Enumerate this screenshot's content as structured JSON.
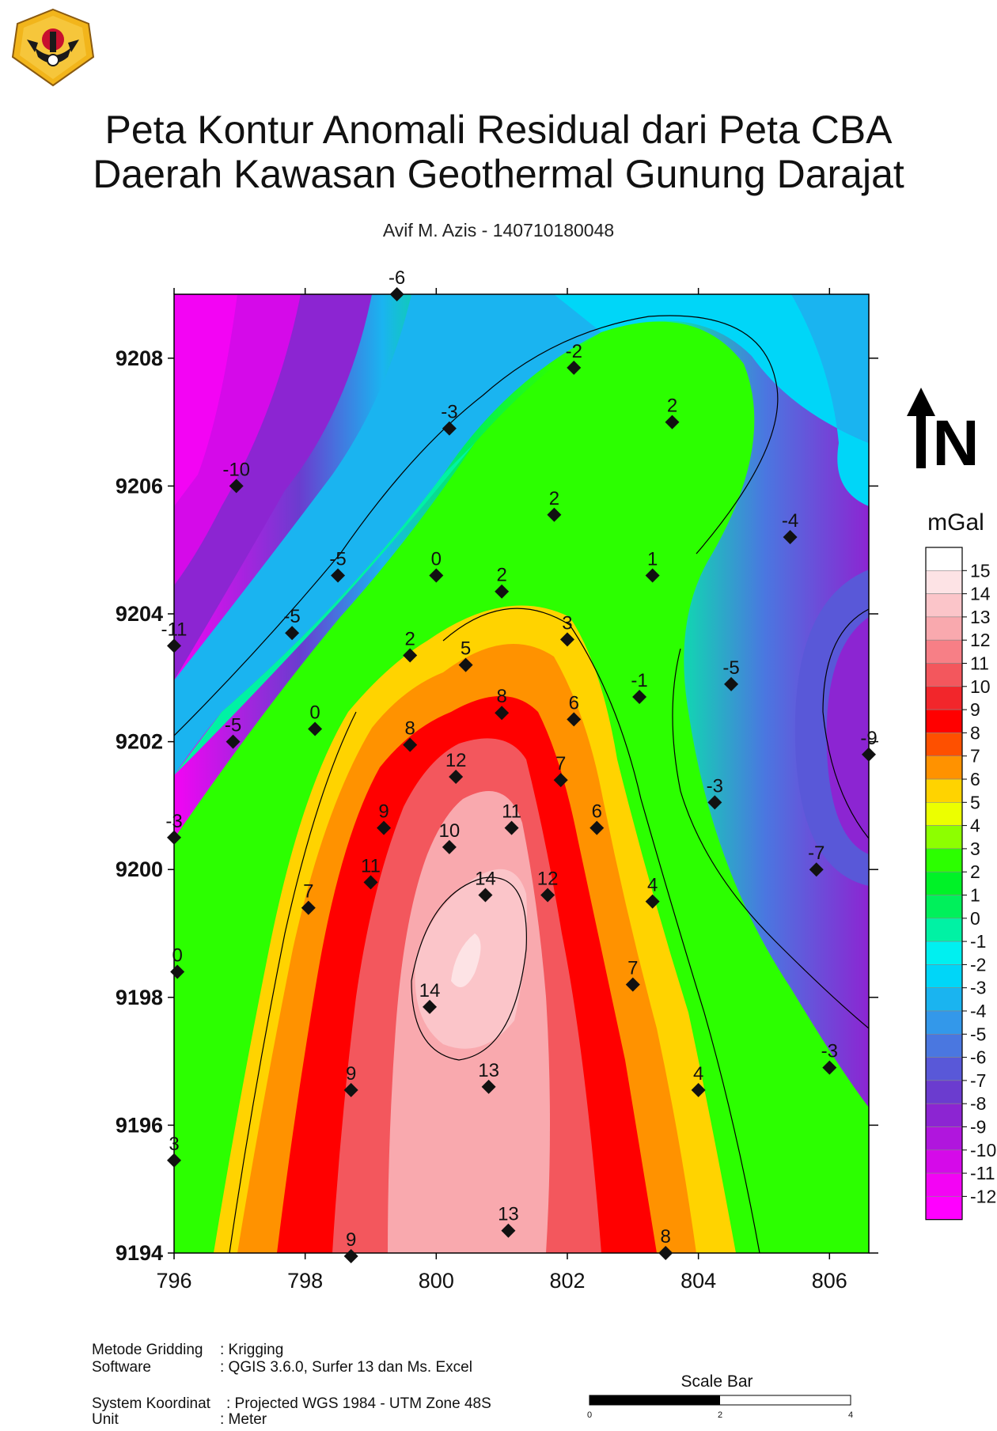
{
  "header": {
    "title_line1": "Peta Kontur Anomali Residual dari Peta CBA",
    "title_line2": "Daerah Kawasan Geothermal Gunung Darajat",
    "author": "Avif M. Azis - 140710180048"
  },
  "map": {
    "x_ticks": [
      "796",
      "798",
      "800",
      "802",
      "804",
      "806"
    ],
    "y_ticks": [
      "9208",
      "9206",
      "9204",
      "9202",
      "9200",
      "9198",
      "9196",
      "9194"
    ],
    "x_range": [
      796,
      806.6
    ],
    "y_range": [
      9194,
      9209
    ],
    "north_label": "N",
    "stations": [
      {
        "x": 799.4,
        "y": 9209.0,
        "label": "-6"
      },
      {
        "x": 802.1,
        "y": 9207.85,
        "label": "-2"
      },
      {
        "x": 800.2,
        "y": 9206.9,
        "label": "-3"
      },
      {
        "x": 803.6,
        "y": 9207.0,
        "label": "2"
      },
      {
        "x": 796.95,
        "y": 9206.0,
        "label": "-10"
      },
      {
        "x": 801.8,
        "y": 9205.55,
        "label": "2"
      },
      {
        "x": 805.4,
        "y": 9205.2,
        "label": "-4"
      },
      {
        "x": 798.5,
        "y": 9204.6,
        "label": "-5"
      },
      {
        "x": 800.0,
        "y": 9204.6,
        "label": "0"
      },
      {
        "x": 801.0,
        "y": 9204.35,
        "label": "2"
      },
      {
        "x": 803.3,
        "y": 9204.6,
        "label": "1"
      },
      {
        "x": 797.8,
        "y": 9203.7,
        "label": "-5"
      },
      {
        "x": 796.0,
        "y": 9203.5,
        "label": "-11"
      },
      {
        "x": 799.6,
        "y": 9203.35,
        "label": "2"
      },
      {
        "x": 800.45,
        "y": 9203.2,
        "label": "5"
      },
      {
        "x": 802.0,
        "y": 9203.6,
        "label": "3"
      },
      {
        "x": 803.1,
        "y": 9202.7,
        "label": "-1"
      },
      {
        "x": 804.5,
        "y": 9202.9,
        "label": "-5"
      },
      {
        "x": 798.15,
        "y": 9202.2,
        "label": "0"
      },
      {
        "x": 796.9,
        "y": 9202.0,
        "label": "-5"
      },
      {
        "x": 801.0,
        "y": 9202.45,
        "label": "8"
      },
      {
        "x": 802.1,
        "y": 9202.35,
        "label": "6"
      },
      {
        "x": 799.6,
        "y": 9201.95,
        "label": "8"
      },
      {
        "x": 806.6,
        "y": 9201.8,
        "label": "-9"
      },
      {
        "x": 800.3,
        "y": 9201.45,
        "label": "12"
      },
      {
        "x": 801.9,
        "y": 9201.4,
        "label": "7"
      },
      {
        "x": 804.25,
        "y": 9201.05,
        "label": "-3"
      },
      {
        "x": 799.2,
        "y": 9200.65,
        "label": "9"
      },
      {
        "x": 801.15,
        "y": 9200.65,
        "label": "11"
      },
      {
        "x": 802.45,
        "y": 9200.65,
        "label": "6"
      },
      {
        "x": 796.0,
        "y": 9200.5,
        "label": "-3"
      },
      {
        "x": 800.2,
        "y": 9200.35,
        "label": "10"
      },
      {
        "x": 805.8,
        "y": 9200.0,
        "label": "-7"
      },
      {
        "x": 799.0,
        "y": 9199.8,
        "label": "11"
      },
      {
        "x": 800.75,
        "y": 9199.6,
        "label": "14"
      },
      {
        "x": 801.7,
        "y": 9199.6,
        "label": "12"
      },
      {
        "x": 798.05,
        "y": 9199.4,
        "label": "7"
      },
      {
        "x": 803.3,
        "y": 9199.5,
        "label": "4"
      },
      {
        "x": 796.05,
        "y": 9198.4,
        "label": "0"
      },
      {
        "x": 803.0,
        "y": 9198.2,
        "label": "7"
      },
      {
        "x": 799.9,
        "y": 9197.85,
        "label": "14"
      },
      {
        "x": 806.0,
        "y": 9196.9,
        "label": "-3"
      },
      {
        "x": 798.7,
        "y": 9196.55,
        "label": "9"
      },
      {
        "x": 800.8,
        "y": 9196.6,
        "label": "13"
      },
      {
        "x": 804.0,
        "y": 9196.55,
        "label": "4"
      },
      {
        "x": 796.0,
        "y": 9195.45,
        "label": "3"
      },
      {
        "x": 801.1,
        "y": 9194.35,
        "label": "13"
      },
      {
        "x": 798.7,
        "y": 9193.95,
        "label": "9"
      },
      {
        "x": 803.5,
        "y": 9194.0,
        "label": "8"
      }
    ]
  },
  "legend": {
    "unit": "mGal",
    "labels": [
      "15",
      "14",
      "13",
      "12",
      "11",
      "10",
      "9",
      "8",
      "7",
      "6",
      "5",
      "4",
      "3",
      "2",
      "1",
      "0",
      "-1",
      "-2",
      "-3",
      "-4",
      "-5",
      "-6",
      "-7",
      "-8",
      "-9",
      "-10",
      "-11",
      "-12"
    ],
    "colors": [
      "#ffffff",
      "#fde3e5",
      "#fbc5c9",
      "#f9a9ae",
      "#f77f86",
      "#f3575d",
      "#f2262b",
      "#ff0000",
      "#fe5000",
      "#ff9200",
      "#ffd300",
      "#ecff00",
      "#8dff00",
      "#2cff00",
      "#00f227",
      "#00f05b",
      "#00f2a4",
      "#00f0f0",
      "#00d6f8",
      "#1ab4f0",
      "#3398ea",
      "#4a77e0",
      "#5958d8",
      "#6b3ccf",
      "#8c25d2",
      "#b016dd",
      "#d50ae9",
      "#f304f4",
      "#ff00ff"
    ]
  },
  "footer": {
    "method_label": "Metode Gridding",
    "method_value": ": Krigging",
    "software_label": "Software",
    "software_value": ": QGIS 3.6.0, Surfer 13 dan Ms. Excel",
    "crs_label": "System Koordinat",
    "crs_value": ": Projected WGS 1984 - UTM Zone 48S",
    "unit_label": "Unit",
    "unit_value": ": Meter",
    "scale_title": "Scale Bar",
    "scale_ticks": [
      "0",
      "2",
      "4"
    ]
  }
}
